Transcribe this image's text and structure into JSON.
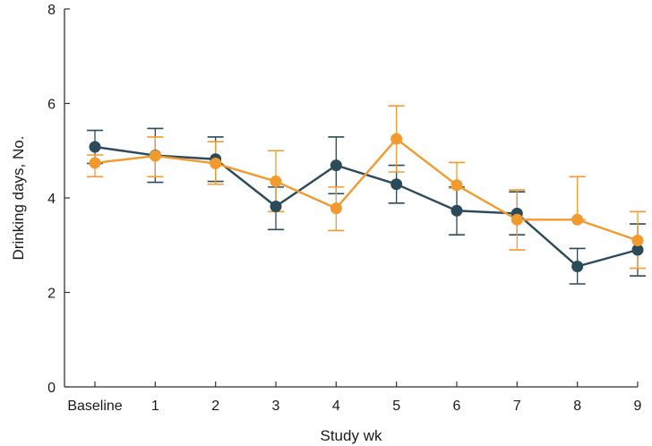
{
  "chart_data": {
    "type": "line",
    "title": "",
    "xlabel": "Study wk",
    "ylabel": "Drinking days, No.",
    "categories": [
      "Baseline",
      "1",
      "2",
      "3",
      "4",
      "5",
      "6",
      "7",
      "8",
      "9"
    ],
    "ylim": [
      0,
      8
    ],
    "yticks": [
      "0",
      "2",
      "4",
      "6",
      "8"
    ],
    "grid": false,
    "legend": "none",
    "series": [
      {
        "color": "#2b4a5a",
        "values": [
          5.08,
          4.9,
          4.82,
          3.82,
          4.69,
          4.29,
          3.73,
          3.67,
          2.55,
          2.9
        ],
        "error_low": [
          4.73,
          4.33,
          4.35,
          3.33,
          4.09,
          3.89,
          3.22,
          3.22,
          2.18,
          2.35
        ],
        "error_high": [
          5.43,
          5.47,
          5.29,
          4.23,
          5.29,
          4.69,
          4.23,
          4.13,
          2.93,
          3.45
        ]
      },
      {
        "color": "#f29a2e",
        "values": [
          4.74,
          4.89,
          4.73,
          4.35,
          3.78,
          5.25,
          4.27,
          3.54,
          3.54,
          3.1
        ],
        "error_low": [
          4.45,
          4.45,
          4.29,
          3.71,
          3.31,
          4.55,
          4.21,
          2.9,
          3.54,
          2.51
        ],
        "error_high": [
          4.91,
          5.29,
          5.19,
          5.0,
          4.23,
          5.95,
          4.75,
          4.17,
          4.45,
          3.71
        ]
      }
    ]
  }
}
